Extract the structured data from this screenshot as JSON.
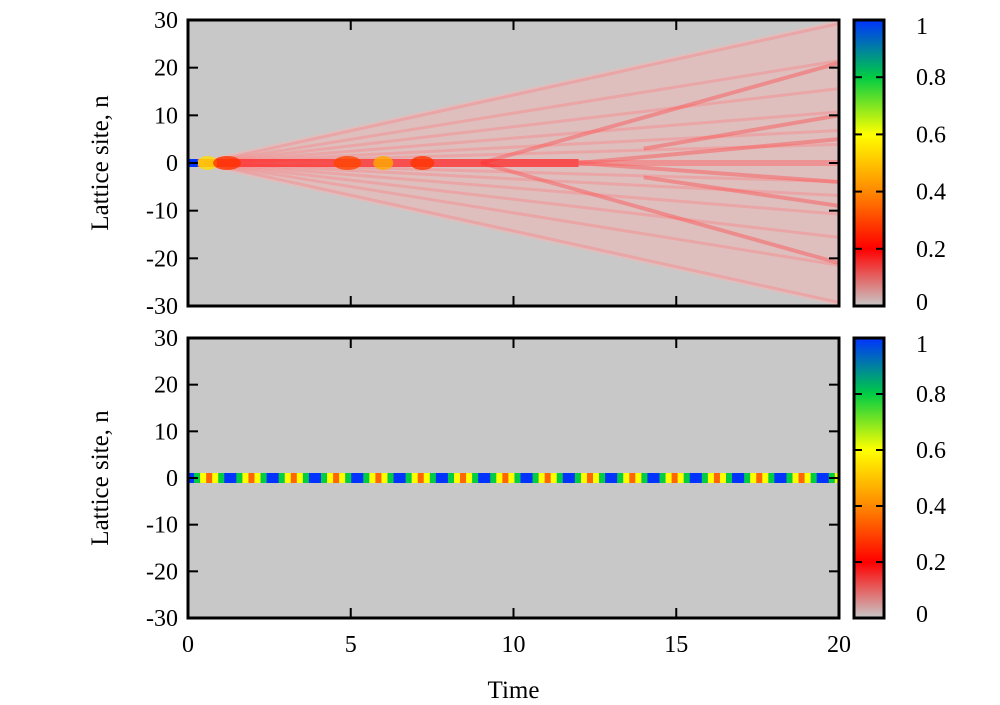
{
  "figure": {
    "xlabel": "Time",
    "ylabel_top": "Lattice site, n",
    "ylabel_bottom": "Lattice site, n"
  },
  "chart_data": [
    {
      "type": "heatmap",
      "panel": "top",
      "xlabel": "",
      "ylabel": "Lattice site, n",
      "xlim": [
        0,
        20
      ],
      "ylim": [
        -30,
        30
      ],
      "x_ticks": [
        0,
        5,
        10,
        15,
        20
      ],
      "y_ticks": [
        30,
        20,
        10,
        0,
        -10,
        -20,
        -30
      ],
      "x_tick_labels_shown": false,
      "colorbar": {
        "min": 0,
        "max": 1,
        "ticks": [
          "1",
          "0.8",
          "0.6",
          "0.4",
          "0.2",
          "0"
        ]
      },
      "colormap": [
        "#c8c8c8",
        "#ff0000",
        "#ff8800",
        "#ffff00",
        "#00cc44",
        "#0033ff"
      ],
      "background_color": "#c8c8c8",
      "features": [
        {
          "description": "initial excitation at site 0",
          "t": [
            0,
            0.3
          ],
          "n": 0,
          "value": 1.0
        },
        {
          "description": "central band at site 0 decaying",
          "t": [
            0.3,
            12
          ],
          "n": 0,
          "value": 0.35
        },
        {
          "description": "ballistic spreading cone",
          "t": [
            0,
            20
          ],
          "n_edge": [
            0,
            30
          ],
          "value": 0.1
        },
        {
          "description": "secondary branches at late times",
          "n": [
            5,
            -4,
            10,
            -9,
            20,
            -20
          ],
          "value": 0.15
        }
      ]
    },
    {
      "type": "heatmap",
      "panel": "bottom",
      "xlabel": "Time",
      "ylabel": "Lattice site, n",
      "xlim": [
        0,
        20
      ],
      "ylim": [
        -30,
        30
      ],
      "x_ticks": [
        0,
        5,
        10,
        15,
        20
      ],
      "y_ticks": [
        30,
        20,
        10,
        0,
        -10,
        -20,
        -30
      ],
      "x_tick_labels": [
        "0",
        "5",
        "10",
        "15",
        "20"
      ],
      "colorbar": {
        "min": 0,
        "max": 1,
        "ticks": [
          "1",
          "0.8",
          "0.6",
          "0.4",
          "0.2",
          "0"
        ]
      },
      "colormap": [
        "#c8c8c8",
        "#ff0000",
        "#ff8800",
        "#ffff00",
        "#00cc44",
        "#0033ff"
      ],
      "background_color": "#c8c8c8",
      "features": [
        {
          "description": "localized oscillating state at site 0",
          "n": 0,
          "t": [
            0,
            20
          ],
          "value_range": [
            0.35,
            1.0
          ],
          "oscillation_period": 1.3
        }
      ]
    }
  ]
}
